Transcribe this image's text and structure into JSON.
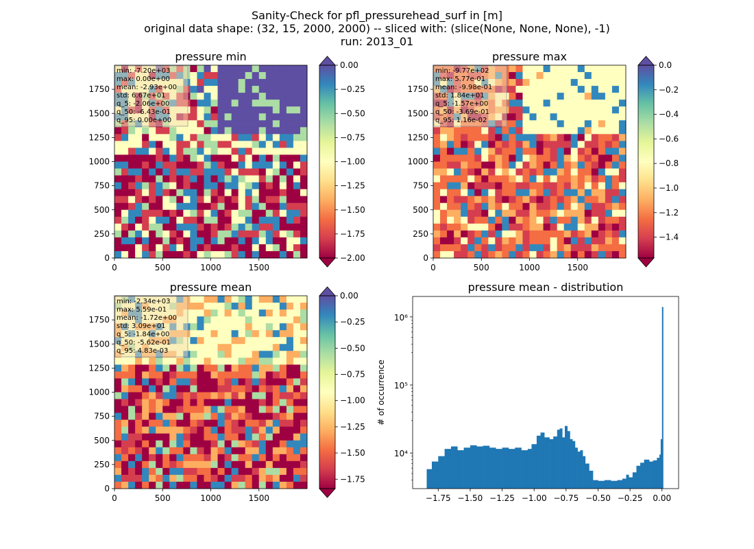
{
  "figure": {
    "title_lines": [
      "Sanity-Check for pfl_pressurehead_surf in [m]",
      "original data shape: (32, 15, 2000, 2000) -- sliced with: (slice(None, None, None), -1)",
      "run: 2013_01"
    ]
  },
  "colors": {
    "spectral": [
      "#9e0142",
      "#d53e4f",
      "#f46d43",
      "#fdae61",
      "#fee08b",
      "#ffffbf",
      "#e6f598",
      "#abdda4",
      "#66c2a5",
      "#3288bd",
      "#5e4fa2"
    ],
    "hist_bar": "#1f77b4"
  },
  "chart_data": [
    {
      "type": "heatmap",
      "title": "pressure min",
      "xticks": [
        "0",
        "500",
        "1000",
        "1500"
      ],
      "yticks": [
        "0",
        "250",
        "500",
        "750",
        "1000",
        "1250",
        "1500",
        "1750"
      ],
      "colorbar": {
        "ticks": [
          "0.00",
          "−0.25",
          "−0.50",
          "−0.75",
          "−1.00",
          "−1.25",
          "−1.50",
          "−1.75",
          "−2.00"
        ],
        "vmin": -2.0,
        "vmax": 0.0,
        "extend": "both"
      },
      "stats": [
        "min: -7.20e+03",
        "max: 0.00e+00",
        "mean: -2.93e+00",
        "std: 6.67e+01",
        "q_5: -2.06e+00",
        "q_50: -6.43e-01",
        "q_95: 0.00e+00"
      ]
    },
    {
      "type": "heatmap",
      "title": "pressure max",
      "xticks": [
        "0",
        "500",
        "1000",
        "1500"
      ],
      "yticks": [
        "0",
        "250",
        "500",
        "750",
        "1000",
        "1250",
        "1500",
        "1750"
      ],
      "colorbar": {
        "ticks": [
          "0.0",
          "−0.2",
          "−0.4",
          "−0.6",
          "−0.8",
          "−1.0",
          "−1.2",
          "−1.4"
        ],
        "vmin": -1.57,
        "vmax": 0.0,
        "extend": "both"
      },
      "stats": [
        "min: -9.77e+02",
        "max: 5.77e-01",
        "mean: -9.98e-01",
        "std: 1.84e+01",
        "q_5: -1.57e+00",
        "q_50: -3.69e-01",
        "q_95: 1.16e-02"
      ]
    },
    {
      "type": "heatmap",
      "title": "pressure mean",
      "xticks": [
        "0",
        "500",
        "1000",
        "1500"
      ],
      "yticks": [
        "0",
        "250",
        "500",
        "750",
        "1000",
        "1250",
        "1500",
        "1750"
      ],
      "colorbar": {
        "ticks": [
          "0.00",
          "−0.25",
          "−0.50",
          "−0.75",
          "−1.00",
          "−1.25",
          "−1.50",
          "−1.75"
        ],
        "vmin": -1.84,
        "vmax": 0.0,
        "extend": "both"
      },
      "stats": [
        "min: -2.34e+03",
        "max: 5.59e-01",
        "mean: -1.72e+00",
        "std: 3.09e+01",
        "q_5: -1.84e+00",
        "q_50: -5.62e-01",
        "q_95: 4.83e-03"
      ]
    },
    {
      "type": "bar",
      "title": "pressure mean - distribution",
      "ylabel": "# of occurrence",
      "yscale": "log",
      "xlim": [
        -1.95,
        0.13
      ],
      "ylim": [
        3000,
        2000000
      ],
      "xticks": [
        "−1.75",
        "−1.50",
        "−1.25",
        "−1.00",
        "−0.75",
        "−0.50",
        "−0.25",
        "0.00"
      ],
      "xtick_values": [
        -1.75,
        -1.5,
        -1.25,
        -1.0,
        -0.75,
        -0.5,
        -0.25,
        0.0
      ],
      "yticks": [
        "10⁴",
        "10⁵",
        "10⁶"
      ],
      "ytick_values": [
        10000,
        100000,
        1000000
      ],
      "points": [
        [
          -1.84,
          5800
        ],
        [
          -1.8,
          7500
        ],
        [
          -1.75,
          9000
        ],
        [
          -1.7,
          11500
        ],
        [
          -1.65,
          12500
        ],
        [
          -1.6,
          11000
        ],
        [
          -1.55,
          12000
        ],
        [
          -1.5,
          13000
        ],
        [
          -1.45,
          12500
        ],
        [
          -1.4,
          12800
        ],
        [
          -1.35,
          12000
        ],
        [
          -1.3,
          11500
        ],
        [
          -1.25,
          12000
        ],
        [
          -1.2,
          11500
        ],
        [
          -1.15,
          12000
        ],
        [
          -1.1,
          11000
        ],
        [
          -1.05,
          11500
        ],
        [
          -1.02,
          13500
        ],
        [
          -0.98,
          18000
        ],
        [
          -0.95,
          20000
        ],
        [
          -0.92,
          17000
        ],
        [
          -0.88,
          16000
        ],
        [
          -0.85,
          17500
        ],
        [
          -0.82,
          22000
        ],
        [
          -0.8,
          23000
        ],
        [
          -0.78,
          17000
        ],
        [
          -0.76,
          25000
        ],
        [
          -0.74,
          21000
        ],
        [
          -0.72,
          16000
        ],
        [
          -0.7,
          15000
        ],
        [
          -0.68,
          12000
        ],
        [
          -0.66,
          10500
        ],
        [
          -0.64,
          11000
        ],
        [
          -0.62,
          9000
        ],
        [
          -0.6,
          7000
        ],
        [
          -0.57,
          5500
        ],
        [
          -0.54,
          4000
        ],
        [
          -0.5,
          3900
        ],
        [
          -0.45,
          4000
        ],
        [
          -0.4,
          3900
        ],
        [
          -0.35,
          4000
        ],
        [
          -0.31,
          4200
        ],
        [
          -0.28,
          4800
        ],
        [
          -0.26,
          4400
        ],
        [
          -0.23,
          5200
        ],
        [
          -0.2,
          6500
        ],
        [
          -0.17,
          7200
        ],
        [
          -0.14,
          8000
        ],
        [
          -0.1,
          7500
        ],
        [
          -0.07,
          7800
        ],
        [
          -0.04,
          8500
        ],
        [
          -0.02,
          9500
        ],
        [
          -0.01,
          16000
        ],
        [
          0.0,
          1400000
        ]
      ]
    }
  ]
}
